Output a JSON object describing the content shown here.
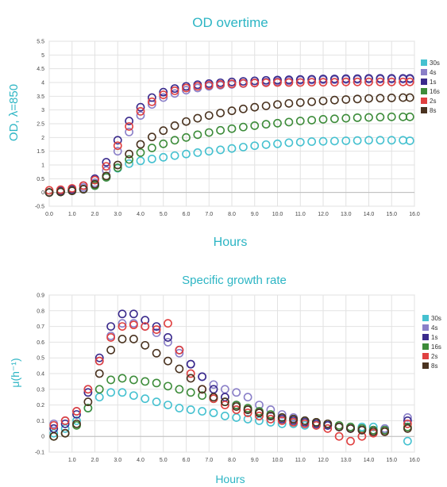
{
  "chart_data": [
    {
      "type": "scatter",
      "title": "OD overtime",
      "xlabel": "Hours",
      "ylabel": "OD, λ=850",
      "xlim": [
        0,
        16
      ],
      "ylim": [
        -0.5,
        5.5
      ],
      "xticks": [
        "0.0",
        "1.0",
        "2.0",
        "3.0",
        "4.0",
        "5.0",
        "6.0",
        "7.0",
        "8.0",
        "9.0",
        "10.0",
        "11.0",
        "12.0",
        "13.0",
        "14.0",
        "15.0",
        "16.0"
      ],
      "yticks": [
        "5.5",
        "5",
        "4.5",
        "4",
        "3.5",
        "3",
        "2.5",
        "2",
        "1.5",
        "1",
        "0.5",
        "0",
        "-0.5"
      ],
      "grid": true,
      "legend_position": "right",
      "series": [
        {
          "name": "30s",
          "color": "#45c1d0",
          "values": [
            0,
            0.02,
            0.06,
            0.12,
            0.25,
            0.55,
            0.88,
            1.05,
            1.15,
            1.22,
            1.28,
            1.34,
            1.4,
            1.45,
            1.5,
            1.55,
            1.6,
            1.65,
            1.7,
            1.74,
            1.77,
            1.81,
            1.83,
            1.85,
            1.86,
            1.87,
            1.88,
            1.89,
            1.9,
            1.9,
            1.9,
            1.9,
            1.88
          ]
        },
        {
          "name": "4s",
          "color": "#8a7fc8",
          "values": [
            0,
            0.05,
            0.1,
            0.18,
            0.35,
            0.8,
            1.5,
            2.2,
            2.8,
            3.2,
            3.45,
            3.6,
            3.72,
            3.8,
            3.86,
            3.9,
            3.93,
            3.96,
            3.99,
            4.02,
            4.04,
            4.06,
            4.08,
            4.09,
            4.1,
            4.1,
            4.11,
            4.11,
            4.12,
            4.12,
            4.12,
            4.12,
            4.12
          ]
        },
        {
          "name": "1s",
          "color": "#3a2a8c",
          "values": [
            0,
            0.05,
            0.12,
            0.25,
            0.5,
            1.1,
            1.9,
            2.6,
            3.1,
            3.45,
            3.65,
            3.78,
            3.86,
            3.92,
            3.96,
            3.99,
            4.02,
            4.04,
            4.06,
            4.08,
            4.09,
            4.1,
            4.11,
            4.12,
            4.13,
            4.13,
            4.14,
            4.14,
            4.15,
            4.15,
            4.15,
            4.15,
            4.15
          ]
        },
        {
          "name": "16s",
          "color": "#3d8c3a",
          "values": [
            0,
            0.02,
            0.06,
            0.12,
            0.25,
            0.55,
            0.9,
            1.2,
            1.45,
            1.62,
            1.77,
            1.9,
            2.0,
            2.1,
            2.18,
            2.26,
            2.32,
            2.38,
            2.43,
            2.48,
            2.52,
            2.56,
            2.6,
            2.63,
            2.66,
            2.68,
            2.7,
            2.72,
            2.73,
            2.74,
            2.75,
            2.75,
            2.75
          ]
        },
        {
          "name": "2s",
          "color": "#e04040",
          "values": [
            0.08,
            0.1,
            0.15,
            0.25,
            0.45,
            0.95,
            1.7,
            2.4,
            2.95,
            3.3,
            3.55,
            3.7,
            3.8,
            3.86,
            3.9,
            3.93,
            3.95,
            3.97,
            3.98,
            3.99,
            4.0,
            4.0,
            4.0,
            4.01,
            4.01,
            4.01,
            4.02,
            4.02,
            4.02,
            4.02,
            4.02,
            4.02,
            4.02
          ]
        },
        {
          "name": "8s",
          "color": "#4a3320",
          "values": [
            0,
            0.02,
            0.06,
            0.12,
            0.3,
            0.6,
            1.0,
            1.4,
            1.75,
            2.02,
            2.25,
            2.43,
            2.58,
            2.7,
            2.8,
            2.89,
            2.97,
            3.04,
            3.1,
            3.15,
            3.2,
            3.24,
            3.27,
            3.3,
            3.33,
            3.36,
            3.38,
            3.4,
            3.42,
            3.43,
            3.44,
            3.45,
            3.45
          ]
        }
      ],
      "x": [
        0,
        0.5,
        1,
        1.5,
        2,
        2.5,
        3,
        3.5,
        4,
        4.5,
        5,
        5.5,
        6,
        6.5,
        7,
        7.5,
        8,
        8.5,
        9,
        9.5,
        10,
        10.5,
        11,
        11.5,
        12,
        12.5,
        13,
        13.5,
        14,
        14.5,
        15,
        15.5,
        15.8
      ]
    },
    {
      "type": "scatter",
      "title": "Specific growth rate",
      "xlabel": "Hours",
      "ylabel": "μ(h⁻¹)",
      "xlim": [
        0,
        16
      ],
      "ylim": [
        -0.1,
        0.9
      ],
      "xticks": [
        "1.0",
        "2.0",
        "3.0",
        "4.0",
        "5.0",
        "6.0",
        "7.0",
        "8.0",
        "9.0",
        "10.0",
        "11.0",
        "12.0",
        "13.0",
        "14.0",
        "15.0",
        "16.0"
      ],
      "yticks": [
        "0.9",
        "0.8",
        "0.7",
        "0.6",
        "0.5",
        "0.4",
        "0.3",
        "0.2",
        "0.1",
        "0",
        "-0.1"
      ],
      "grid": true,
      "legend_position": "right",
      "series": [
        {
          "name": "30s",
          "color": "#45c1d0",
          "values": [
            0.02,
            0.05,
            0.1,
            0.18,
            0.25,
            0.28,
            0.28,
            0.26,
            0.24,
            0.22,
            0.2,
            0.18,
            0.17,
            0.16,
            0.15,
            0.13,
            0.12,
            0.11,
            0.1,
            0.09,
            0.08,
            0.08,
            0.07,
            0.07,
            0.07,
            0.06,
            0.06,
            0.06,
            0.06,
            0.05,
            -0.03
          ]
        },
        {
          "name": "4s",
          "color": "#8a7fc8",
          "values": [
            0.08,
            0.1,
            0.16,
            0.3,
            0.48,
            0.64,
            0.72,
            0.72,
            0.7,
            0.66,
            0.6,
            0.53,
            0.46,
            0.38,
            0.33,
            0.3,
            0.28,
            0.25,
            0.2,
            0.17,
            0.14,
            0.12,
            0.1,
            0.08,
            0.07,
            0.06,
            0.05,
            0.05,
            0.04,
            0.05,
            0.12
          ]
        },
        {
          "name": "1s",
          "color": "#3a2a8c",
          "values": [
            0.05,
            0.08,
            0.14,
            0.28,
            0.5,
            0.7,
            0.78,
            0.78,
            0.74,
            0.7,
            0.63,
            0.55,
            0.46,
            0.38,
            0.3,
            0.25,
            0.2,
            0.17,
            0.15,
            0.13,
            0.11,
            0.1,
            0.09,
            0.08,
            0.07,
            0.06,
            0.05,
            0.04,
            0.04,
            0.04,
            0.1
          ]
        },
        {
          "name": "16s",
          "color": "#3d8c3a",
          "values": [
            0.0,
            0.02,
            0.07,
            0.18,
            0.3,
            0.36,
            0.37,
            0.36,
            0.35,
            0.34,
            0.32,
            0.3,
            0.28,
            0.26,
            0.24,
            0.22,
            0.2,
            0.18,
            0.16,
            0.14,
            0.12,
            0.11,
            0.1,
            0.09,
            0.08,
            0.07,
            0.06,
            0.05,
            0.04,
            0.04,
            0.06
          ]
        },
        {
          "name": "2s",
          "color": "#e04040",
          "values": [
            0.07,
            0.1,
            0.16,
            0.3,
            0.48,
            0.63,
            0.7,
            0.71,
            0.7,
            0.68,
            0.72,
            0.55,
            0.4,
            0.3,
            0.24,
            0.2,
            0.17,
            0.15,
            0.13,
            0.11,
            0.1,
            0.09,
            0.08,
            0.07,
            0.05,
            0.0,
            -0.03,
            0.0,
            0.02,
            0.03,
            0.08
          ]
        },
        {
          "name": "8s",
          "color": "#4a3320",
          "values": [
            0.0,
            0.02,
            0.08,
            0.22,
            0.4,
            0.55,
            0.62,
            0.62,
            0.58,
            0.53,
            0.48,
            0.43,
            0.37,
            0.3,
            0.25,
            0.22,
            0.19,
            0.17,
            0.15,
            0.13,
            0.12,
            0.11,
            0.1,
            0.09,
            0.08,
            0.06,
            0.05,
            0.04,
            0.03,
            0.03,
            0.05
          ]
        }
      ],
      "x": [
        0.2,
        0.7,
        1.2,
        1.7,
        2.2,
        2.7,
        3.2,
        3.7,
        4.2,
        4.7,
        5.2,
        5.7,
        6.2,
        6.7,
        7.2,
        7.7,
        8.2,
        8.7,
        9.2,
        9.7,
        10.2,
        10.7,
        11.2,
        11.7,
        12.2,
        12.7,
        13.2,
        13.7,
        14.2,
        14.7,
        15.7
      ]
    }
  ]
}
